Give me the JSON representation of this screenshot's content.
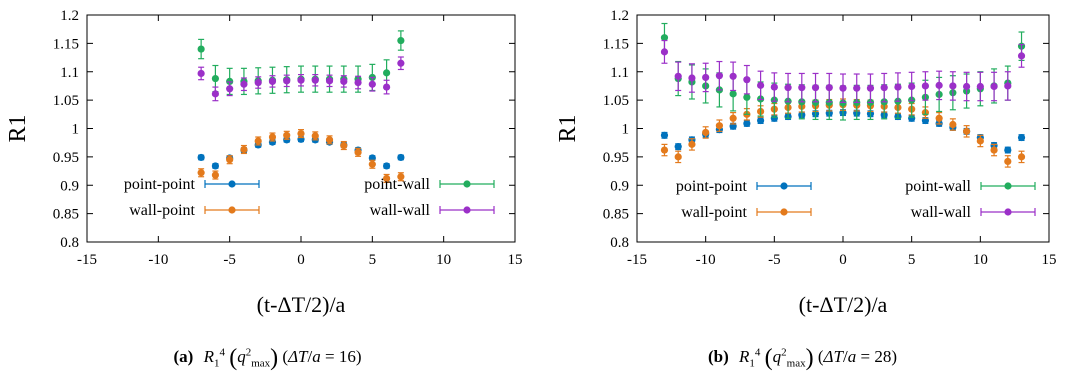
{
  "chart_data": [
    {
      "type": "scatter",
      "subfigure_tag": "(a)",
      "caption_vars": {
        "dt_value": "16"
      },
      "xlabel": "(t-ΔT/2)/a",
      "ylabel": "R1",
      "xlim": [
        -15,
        15
      ],
      "ylim": [
        0.8,
        1.2
      ],
      "xticks": [
        -15,
        -10,
        -5,
        0,
        5,
        10,
        15
      ],
      "yticks": [
        0.8,
        0.85,
        0.9,
        0.95,
        1,
        1.05,
        1.1,
        1.15,
        1.2
      ],
      "ytick_labels": [
        "0.8",
        "0.85",
        "0.9",
        "0.95",
        "1",
        "1.05",
        "1.1",
        "1.15",
        "1.2"
      ],
      "legend_position": "bottom",
      "series": [
        {
          "name": "point-point",
          "color": "#0072bd",
          "x": [
            -7,
            -6,
            -5,
            -4,
            -3,
            -2,
            -1,
            0,
            1,
            2,
            3,
            4,
            5,
            6,
            7
          ],
          "y": [
            0.949,
            0.934,
            0.948,
            0.962,
            0.971,
            0.976,
            0.98,
            0.981,
            0.98,
            0.976,
            0.971,
            0.962,
            0.948,
            0.934,
            0.949
          ],
          "err": [
            0.004,
            0.004,
            0.004,
            0.004,
            0.004,
            0.004,
            0.004,
            0.004,
            0.004,
            0.004,
            0.004,
            0.004,
            0.004,
            0.004,
            0.004
          ]
        },
        {
          "name": "wall-point",
          "color": "#e37a1c",
          "x": [
            -7,
            -6,
            -5,
            -4,
            -3,
            -2,
            -1,
            0,
            1,
            2,
            3,
            4,
            5,
            6,
            7
          ],
          "y": [
            0.922,
            0.918,
            0.945,
            0.963,
            0.978,
            0.985,
            0.988,
            0.991,
            0.987,
            0.98,
            0.97,
            0.958,
            0.937,
            0.912,
            0.915
          ],
          "err": [
            0.007,
            0.007,
            0.007,
            0.007,
            0.007,
            0.007,
            0.007,
            0.007,
            0.007,
            0.007,
            0.007,
            0.007,
            0.007,
            0.007,
            0.007
          ]
        },
        {
          "name": "point-wall",
          "color": "#22ad5e",
          "x": [
            -7,
            -6,
            -5,
            -4,
            -3,
            -2,
            -1,
            0,
            1,
            2,
            3,
            4,
            5,
            6,
            7
          ],
          "y": [
            1.14,
            1.088,
            1.083,
            1.083,
            1.084,
            1.085,
            1.086,
            1.087,
            1.087,
            1.087,
            1.087,
            1.087,
            1.09,
            1.098,
            1.155
          ],
          "err": [
            0.017,
            0.023,
            0.023,
            0.023,
            0.023,
            0.023,
            0.023,
            0.023,
            0.023,
            0.023,
            0.023,
            0.023,
            0.023,
            0.023,
            0.017
          ]
        },
        {
          "name": "wall-wall",
          "color": "#9b30c8",
          "x": [
            -7,
            -6,
            -5,
            -4,
            -3,
            -2,
            -1,
            0,
            1,
            2,
            3,
            4,
            5,
            6,
            7
          ],
          "y": [
            1.097,
            1.061,
            1.07,
            1.078,
            1.081,
            1.083,
            1.084,
            1.085,
            1.085,
            1.084,
            1.083,
            1.081,
            1.078,
            1.073,
            1.115
          ],
          "err": [
            0.011,
            0.012,
            0.012,
            0.011,
            0.01,
            0.01,
            0.01,
            0.01,
            0.01,
            0.01,
            0.01,
            0.011,
            0.012,
            0.012,
            0.011
          ]
        }
      ]
    },
    {
      "type": "scatter",
      "subfigure_tag": "(b)",
      "caption_vars": {
        "dt_value": "28"
      },
      "xlabel": "(t-ΔT/2)/a",
      "ylabel": "R1",
      "xlim": [
        -15,
        15
      ],
      "ylim": [
        0.8,
        1.2
      ],
      "xticks": [
        -15,
        -10,
        -5,
        0,
        5,
        10,
        15
      ],
      "yticks": [
        0.8,
        0.85,
        0.9,
        0.95,
        1,
        1.05,
        1.1,
        1.15,
        1.2
      ],
      "ytick_labels": [
        "0.8",
        "0.85",
        "0.9",
        "0.95",
        "1",
        "1.05",
        "1.1",
        "1.15",
        "1.2"
      ],
      "legend_position": "bottom",
      "series": [
        {
          "name": "point-point",
          "color": "#0072bd",
          "x": [
            -13,
            -12,
            -11,
            -10,
            -9,
            -8,
            -7,
            -6,
            -5,
            -4,
            -3,
            -2,
            -1,
            0,
            1,
            2,
            3,
            4,
            5,
            6,
            7,
            8,
            9,
            10,
            11,
            12,
            13
          ],
          "y": [
            0.988,
            0.968,
            0.98,
            0.99,
            0.998,
            1.004,
            1.009,
            1.014,
            1.018,
            1.021,
            1.024,
            1.026,
            1.027,
            1.028,
            1.027,
            1.026,
            1.024,
            1.021,
            1.018,
            1.014,
            1.009,
            1.002,
            0.995,
            0.984,
            0.97,
            0.962,
            0.984
          ],
          "err": [
            0.005,
            0.005,
            0.005,
            0.005,
            0.005,
            0.005,
            0.005,
            0.005,
            0.005,
            0.005,
            0.005,
            0.005,
            0.005,
            0.005,
            0.005,
            0.005,
            0.005,
            0.005,
            0.005,
            0.005,
            0.005,
            0.005,
            0.005,
            0.005,
            0.005,
            0.005,
            0.005
          ]
        },
        {
          "name": "wall-point",
          "color": "#e37a1c",
          "x": [
            -13,
            -12,
            -11,
            -10,
            -9,
            -8,
            -7,
            -6,
            -5,
            -4,
            -3,
            -2,
            -1,
            0,
            1,
            2,
            3,
            4,
            5,
            6,
            7,
            8,
            9,
            10,
            11,
            12,
            13
          ],
          "y": [
            0.962,
            0.95,
            0.972,
            0.993,
            1.005,
            1.018,
            1.025,
            1.03,
            1.034,
            1.037,
            1.039,
            1.04,
            1.041,
            1.042,
            1.041,
            1.04,
            1.039,
            1.037,
            1.034,
            1.028,
            1.018,
            1.007,
            0.995,
            0.978,
            0.962,
            0.942,
            0.95
          ],
          "err": [
            0.01,
            0.01,
            0.01,
            0.01,
            0.01,
            0.01,
            0.01,
            0.01,
            0.01,
            0.01,
            0.01,
            0.01,
            0.01,
            0.01,
            0.01,
            0.01,
            0.01,
            0.01,
            0.01,
            0.01,
            0.01,
            0.01,
            0.01,
            0.01,
            0.01,
            0.01,
            0.01
          ]
        },
        {
          "name": "point-wall",
          "color": "#22ad5e",
          "x": [
            -13,
            -12,
            -11,
            -10,
            -9,
            -8,
            -7,
            -6,
            -5,
            -4,
            -3,
            -2,
            -1,
            0,
            1,
            2,
            3,
            4,
            5,
            6,
            7,
            8,
            9,
            10,
            11,
            12,
            13
          ],
          "y": [
            1.16,
            1.088,
            1.082,
            1.075,
            1.068,
            1.061,
            1.055,
            1.052,
            1.05,
            1.048,
            1.047,
            1.046,
            1.046,
            1.045,
            1.046,
            1.046,
            1.047,
            1.048,
            1.05,
            1.055,
            1.06,
            1.063,
            1.066,
            1.07,
            1.075,
            1.08,
            1.145
          ],
          "err": [
            0.025,
            0.03,
            0.03,
            0.03,
            0.03,
            0.03,
            0.03,
            0.03,
            0.03,
            0.03,
            0.03,
            0.03,
            0.03,
            0.03,
            0.03,
            0.03,
            0.03,
            0.03,
            0.03,
            0.03,
            0.03,
            0.03,
            0.03,
            0.03,
            0.03,
            0.03,
            0.025
          ]
        },
        {
          "name": "wall-wall",
          "color": "#9b30c8",
          "x": [
            -13,
            -12,
            -11,
            -10,
            -9,
            -8,
            -7,
            -6,
            -5,
            -4,
            -3,
            -2,
            -1,
            0,
            1,
            2,
            3,
            4,
            5,
            6,
            7,
            8,
            9,
            10,
            11,
            12,
            13
          ],
          "y": [
            1.135,
            1.092,
            1.089,
            1.09,
            1.093,
            1.092,
            1.086,
            1.076,
            1.073,
            1.072,
            1.072,
            1.072,
            1.072,
            1.071,
            1.071,
            1.071,
            1.072,
            1.073,
            1.074,
            1.075,
            1.076,
            1.075,
            1.074,
            1.074,
            1.074,
            1.075,
            1.128
          ],
          "err": [
            0.02,
            0.025,
            0.025,
            0.025,
            0.025,
            0.025,
            0.025,
            0.025,
            0.025,
            0.025,
            0.025,
            0.025,
            0.025,
            0.025,
            0.025,
            0.025,
            0.025,
            0.025,
            0.025,
            0.025,
            0.025,
            0.025,
            0.025,
            0.025,
            0.025,
            0.025,
            0.02
          ]
        }
      ]
    }
  ]
}
